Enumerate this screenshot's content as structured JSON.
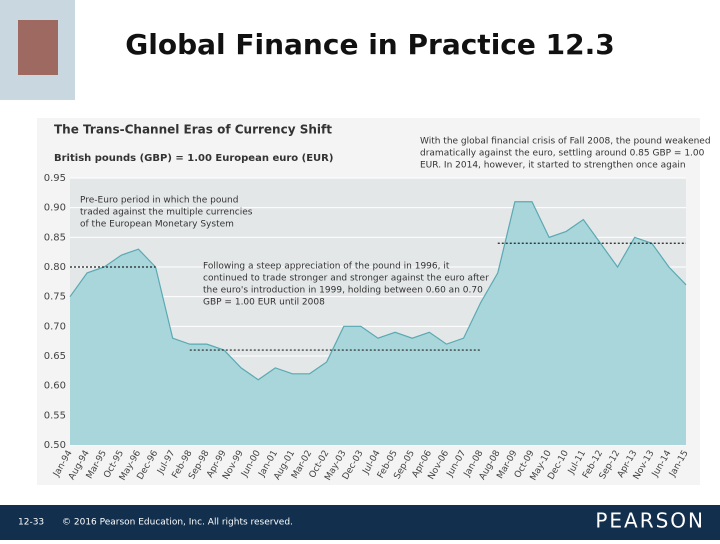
{
  "slide": {
    "title": "Global Finance in Practice 12.3",
    "page": "12-33",
    "copyright": "© 2016 Pearson Education, Inc. All rights reserved.",
    "brand": "PEARSON"
  },
  "chart_data": {
    "type": "area",
    "title": "The Trans-Channel Eras of Currency Shift",
    "subtitle": "British pounds (GBP) = 1.00 European euro (EUR)",
    "annotations": [
      [
        "Pre-Euro period in which the pound",
        "traded against the multiple currencies",
        "of the European Monetary System"
      ],
      [
        "Following a steep appreciation of the pound in 1996, it",
        "continued to trade stronger and stronger against the euro after",
        "the euro's introduction in 1999, holding between 0.60 an 0.70",
        "GBP = 1.00 EUR until 2008"
      ],
      [
        "With the global financial crisis of Fall 2008, the pound weakened",
        "dramatically against the euro, settling around 0.85 GBP = 1.00",
        "EUR. In 2014, however, it started to strengthen once again"
      ]
    ],
    "categories": [
      "Jan-94",
      "Aug-94",
      "Mar-95",
      "Oct-95",
      "May-96",
      "Dec-96",
      "Jul-97",
      "Feb-98",
      "Sep-98",
      "Apr-99",
      "Nov-99",
      "Jun-00",
      "Jan-01",
      "Aug-01",
      "Mar-02",
      "Oct-02",
      "May-03",
      "Dec-03",
      "Jul-04",
      "Feb-05",
      "Sep-05",
      "Apr-06",
      "Nov-06",
      "Jun-07",
      "Jan-08",
      "Aug-08",
      "Mar-09",
      "Oct-09",
      "May-10",
      "Dec-10",
      "Jul-11",
      "Feb-12",
      "Sep-12",
      "Apr-13",
      "Nov-13",
      "Jun-14",
      "Jan-15"
    ],
    "values": [
      0.75,
      0.79,
      0.8,
      0.82,
      0.83,
      0.8,
      0.68,
      0.67,
      0.67,
      0.66,
      0.63,
      0.61,
      0.63,
      0.62,
      0.62,
      0.64,
      0.7,
      0.7,
      0.68,
      0.69,
      0.68,
      0.69,
      0.67,
      0.68,
      0.74,
      0.79,
      0.91,
      0.91,
      0.85,
      0.86,
      0.88,
      0.84,
      0.8,
      0.85,
      0.84,
      0.8,
      0.77
    ],
    "color": "#a9d6db",
    "line_color": "#5aa9b3",
    "reference_lines": [
      0.8,
      0.66,
      0.84
    ],
    "ylim": [
      0.5,
      0.95
    ],
    "yticks": [
      {
        "value": 0.5,
        "label": "0.50"
      },
      0.55,
      {
        "value": 0.6,
        "label": "0.60"
      },
      0.65,
      {
        "value": 0.7,
        "label": "0.70"
      },
      0.75,
      {
        "value": 0.8,
        "label": "0.80"
      },
      0.85,
      {
        "value": 0.9,
        "label": "0.90"
      },
      0.95
    ],
    "grid": true
  }
}
